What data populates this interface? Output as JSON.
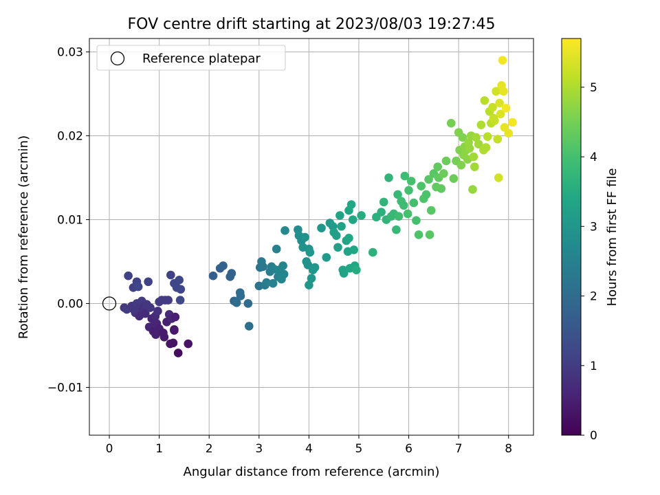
{
  "chart_data": {
    "type": "scatter",
    "title": "FOV centre drift starting at 2023/08/03 19:27:45",
    "xlabel": "Angular distance from reference (arcmin)",
    "ylabel": "Rotation from reference (arcmin)",
    "xlim": [
      -0.4,
      8.5
    ],
    "ylim": [
      -0.0157,
      0.0316
    ],
    "xticks": [
      0,
      1,
      2,
      3,
      4,
      5,
      6,
      7,
      8
    ],
    "xtick_labels": [
      "0",
      "1",
      "2",
      "3",
      "4",
      "5",
      "6",
      "7",
      "8"
    ],
    "yticks": [
      -0.01,
      0.0,
      0.01,
      0.02,
      0.03
    ],
    "ytick_labels": [
      "−0.01",
      "0.00",
      "0.01",
      "0.02",
      "0.03"
    ],
    "grid": true,
    "legend": {
      "position": "top-left",
      "entries": [
        {
          "label": "Reference platepar",
          "marker": "open-circle"
        }
      ]
    },
    "reference_point": {
      "x": 0,
      "y": 0
    },
    "colorbar": {
      "label": "Hours from first FF file",
      "range": [
        0,
        5.7
      ],
      "ticks": [
        0,
        1,
        2,
        3,
        4,
        5
      ],
      "tick_labels": [
        "0",
        "1",
        "2",
        "3",
        "4",
        "5"
      ],
      "colormap": "viridis"
    },
    "points": [
      {
        "x": 0.3,
        "y": -0.0005,
        "t": 0.9
      },
      {
        "x": 0.35,
        "y": -0.0007,
        "t": 1.0
      },
      {
        "x": 0.38,
        "y": 0.0033,
        "t": 1.1
      },
      {
        "x": 0.45,
        "y": -0.0003,
        "t": 0.9
      },
      {
        "x": 0.48,
        "y": 0.0019,
        "t": 1.1
      },
      {
        "x": 0.52,
        "y": -0.0011,
        "t": 0.8
      },
      {
        "x": 0.55,
        "y": 0.0026,
        "t": 1.1
      },
      {
        "x": 0.55,
        "y": 0.0,
        "t": 1.0
      },
      {
        "x": 0.58,
        "y": 0.002,
        "t": 1.2
      },
      {
        "x": 0.6,
        "y": -0.0015,
        "t": 0.7
      },
      {
        "x": 0.62,
        "y": -0.0004,
        "t": 0.9
      },
      {
        "x": 0.65,
        "y": 0.0003,
        "t": 1.0
      },
      {
        "x": 0.68,
        "y": -0.0008,
        "t": 0.8
      },
      {
        "x": 0.7,
        "y": -0.0003,
        "t": 0.8
      },
      {
        "x": 0.72,
        "y": -0.0012,
        "t": 0.7
      },
      {
        "x": 0.75,
        "y": -0.0001,
        "t": 0.9
      },
      {
        "x": 0.78,
        "y": 0.0026,
        "t": 1.1
      },
      {
        "x": 0.8,
        "y": -0.0028,
        "t": 0.6
      },
      {
        "x": 0.82,
        "y": -0.0005,
        "t": 0.9
      },
      {
        "x": 0.85,
        "y": -0.0018,
        "t": 0.6
      },
      {
        "x": 0.88,
        "y": -0.0033,
        "t": 0.5
      },
      {
        "x": 0.9,
        "y": -0.002,
        "t": 0.6
      },
      {
        "x": 0.92,
        "y": -0.0015,
        "t": 0.7
      },
      {
        "x": 0.93,
        "y": -0.0037,
        "t": 0.5
      },
      {
        "x": 0.95,
        "y": -0.0024,
        "t": 0.6
      },
      {
        "x": 0.97,
        "y": -0.0009,
        "t": 0.8
      },
      {
        "x": 1.0,
        "y": 0.0002,
        "t": 1.0
      },
      {
        "x": 1.0,
        "y": -0.003,
        "t": 0.5
      },
      {
        "x": 1.05,
        "y": 0.0004,
        "t": 1.0
      },
      {
        "x": 1.08,
        "y": -0.0035,
        "t": 0.4
      },
      {
        "x": 1.1,
        "y": -0.004,
        "t": 0.4
      },
      {
        "x": 1.12,
        "y": 0.0004,
        "t": 1.0
      },
      {
        "x": 1.15,
        "y": -0.0022,
        "t": 0.5
      },
      {
        "x": 1.18,
        "y": 0.0004,
        "t": 1.0
      },
      {
        "x": 1.2,
        "y": -0.0013,
        "t": 0.7
      },
      {
        "x": 1.22,
        "y": -0.0048,
        "t": 0.3
      },
      {
        "x": 1.23,
        "y": 0.0034,
        "t": 1.1
      },
      {
        "x": 1.25,
        "y": -0.0018,
        "t": 0.6
      },
      {
        "x": 1.28,
        "y": -0.0047,
        "t": 0.3
      },
      {
        "x": 1.3,
        "y": 0.0024,
        "t": 1.2
      },
      {
        "x": 1.3,
        "y": -0.0031,
        "t": 0.4
      },
      {
        "x": 1.32,
        "y": -0.0016,
        "t": 0.5
      },
      {
        "x": 1.35,
        "y": 0.0019,
        "t": 1.2
      },
      {
        "x": 1.38,
        "y": -0.0059,
        "t": 0.2
      },
      {
        "x": 1.4,
        "y": 0.0028,
        "t": 1.2
      },
      {
        "x": 1.42,
        "y": 0.0004,
        "t": 1.2
      },
      {
        "x": 1.43,
        "y": 0.0017,
        "t": 1.2
      },
      {
        "x": 1.58,
        "y": -0.0048,
        "t": 0.3
      },
      {
        "x": 1.3,
        "y": -0.0032,
        "t": 0.4
      },
      {
        "x": 0.5,
        "y": -0.0008,
        "t": 0.9
      },
      {
        "x": 2.08,
        "y": 0.0033,
        "t": 1.7
      },
      {
        "x": 2.22,
        "y": 0.0042,
        "t": 1.7
      },
      {
        "x": 2.28,
        "y": 0.0045,
        "t": 1.8
      },
      {
        "x": 2.42,
        "y": 0.0032,
        "t": 1.8
      },
      {
        "x": 2.45,
        "y": 0.0036,
        "t": 1.8
      },
      {
        "x": 2.5,
        "y": 0.0003,
        "t": 1.9
      },
      {
        "x": 2.55,
        "y": 0.0001,
        "t": 2.0
      },
      {
        "x": 2.62,
        "y": 0.0013,
        "t": 2.0
      },
      {
        "x": 2.63,
        "y": 0.0009,
        "t": 2.0
      },
      {
        "x": 2.78,
        "y": 0.0,
        "t": 2.0
      },
      {
        "x": 2.8,
        "y": -0.0027,
        "t": 2.1
      },
      {
        "x": 3.0,
        "y": 0.0021,
        "t": 2.2
      },
      {
        "x": 3.02,
        "y": 0.0043,
        "t": 2.2
      },
      {
        "x": 3.05,
        "y": 0.005,
        "t": 2.3
      },
      {
        "x": 3.08,
        "y": 0.0044,
        "t": 2.3
      },
      {
        "x": 3.12,
        "y": 0.0022,
        "t": 2.3
      },
      {
        "x": 3.15,
        "y": 0.0025,
        "t": 2.4
      },
      {
        "x": 3.22,
        "y": 0.0038,
        "t": 2.4
      },
      {
        "x": 3.25,
        "y": 0.0044,
        "t": 2.4
      },
      {
        "x": 3.28,
        "y": 0.0024,
        "t": 2.5
      },
      {
        "x": 3.3,
        "y": 0.0041,
        "t": 2.5
      },
      {
        "x": 3.35,
        "y": 0.0065,
        "t": 2.5
      },
      {
        "x": 3.38,
        "y": 0.0032,
        "t": 2.5
      },
      {
        "x": 3.4,
        "y": 0.004,
        "t": 2.6
      },
      {
        "x": 3.45,
        "y": 0.0029,
        "t": 2.6
      },
      {
        "x": 3.48,
        "y": 0.0045,
        "t": 2.6
      },
      {
        "x": 3.5,
        "y": 0.0035,
        "t": 2.6
      },
      {
        "x": 3.52,
        "y": 0.0087,
        "t": 2.7
      },
      {
        "x": 3.78,
        "y": 0.0088,
        "t": 2.8
      },
      {
        "x": 3.8,
        "y": 0.0081,
        "t": 2.8
      },
      {
        "x": 3.85,
        "y": 0.0075,
        "t": 2.8
      },
      {
        "x": 3.88,
        "y": 0.0067,
        "t": 2.9
      },
      {
        "x": 3.92,
        "y": 0.0079,
        "t": 2.9
      },
      {
        "x": 3.95,
        "y": 0.005,
        "t": 2.9
      },
      {
        "x": 3.98,
        "y": 0.0046,
        "t": 2.9
      },
      {
        "x": 4.0,
        "y": 0.0022,
        "t": 3.0
      },
      {
        "x": 4.0,
        "y": 0.0065,
        "t": 2.9
      },
      {
        "x": 4.02,
        "y": 0.0061,
        "t": 3.0
      },
      {
        "x": 4.05,
        "y": 0.003,
        "t": 3.0
      },
      {
        "x": 4.08,
        "y": 0.004,
        "t": 3.0
      },
      {
        "x": 4.12,
        "y": 0.0043,
        "t": 3.0
      },
      {
        "x": 4.25,
        "y": 0.009,
        "t": 3.0
      },
      {
        "x": 4.35,
        "y": 0.0055,
        "t": 3.1
      },
      {
        "x": 4.42,
        "y": 0.0096,
        "t": 3.1
      },
      {
        "x": 4.48,
        "y": 0.0092,
        "t": 3.1
      },
      {
        "x": 4.5,
        "y": 0.0085,
        "t": 3.2
      },
      {
        "x": 4.55,
        "y": 0.0081,
        "t": 3.2
      },
      {
        "x": 4.58,
        "y": 0.0067,
        "t": 3.2
      },
      {
        "x": 4.62,
        "y": 0.0105,
        "t": 3.3
      },
      {
        "x": 4.65,
        "y": 0.0092,
        "t": 3.3
      },
      {
        "x": 4.68,
        "y": 0.004,
        "t": 3.3
      },
      {
        "x": 4.7,
        "y": 0.0036,
        "t": 3.3
      },
      {
        "x": 4.75,
        "y": 0.0075,
        "t": 3.3
      },
      {
        "x": 4.78,
        "y": 0.0062,
        "t": 3.3
      },
      {
        "x": 4.8,
        "y": 0.0111,
        "t": 3.4
      },
      {
        "x": 4.82,
        "y": 0.0042,
        "t": 3.4
      },
      {
        "x": 4.85,
        "y": 0.0118,
        "t": 3.4
      },
      {
        "x": 4.88,
        "y": 0.01,
        "t": 3.4
      },
      {
        "x": 4.9,
        "y": 0.0064,
        "t": 3.4
      },
      {
        "x": 4.92,
        "y": 0.0045,
        "t": 3.4
      },
      {
        "x": 4.95,
        "y": 0.004,
        "t": 3.5
      },
      {
        "x": 5.05,
        "y": 0.0105,
        "t": 3.5
      },
      {
        "x": 4.8,
        "y": 0.0078,
        "t": 3.4
      },
      {
        "x": 5.28,
        "y": 0.0061,
        "t": 3.6
      },
      {
        "x": 5.35,
        "y": 0.0103,
        "t": 3.6
      },
      {
        "x": 5.45,
        "y": 0.0109,
        "t": 3.6
      },
      {
        "x": 5.5,
        "y": 0.0121,
        "t": 3.7
      },
      {
        "x": 5.55,
        "y": 0.01,
        "t": 3.7
      },
      {
        "x": 5.6,
        "y": 0.015,
        "t": 3.7
      },
      {
        "x": 5.65,
        "y": 0.0104,
        "t": 3.8
      },
      {
        "x": 5.7,
        "y": 0.0107,
        "t": 3.8
      },
      {
        "x": 5.75,
        "y": 0.0088,
        "t": 3.8
      },
      {
        "x": 5.78,
        "y": 0.013,
        "t": 3.8
      },
      {
        "x": 5.8,
        "y": 0.0104,
        "t": 3.9
      },
      {
        "x": 5.85,
        "y": 0.0122,
        "t": 3.9
      },
      {
        "x": 5.9,
        "y": 0.0117,
        "t": 3.9
      },
      {
        "x": 5.92,
        "y": 0.0152,
        "t": 3.9
      },
      {
        "x": 5.98,
        "y": 0.0107,
        "t": 4.0
      },
      {
        "x": 6.0,
        "y": 0.0135,
        "t": 4.0
      },
      {
        "x": 6.05,
        "y": 0.0146,
        "t": 4.0
      },
      {
        "x": 6.1,
        "y": 0.012,
        "t": 4.0
      },
      {
        "x": 6.15,
        "y": 0.0099,
        "t": 4.0
      },
      {
        "x": 6.2,
        "y": 0.0082,
        "t": 4.1
      },
      {
        "x": 6.25,
        "y": 0.014,
        "t": 4.1
      },
      {
        "x": 6.3,
        "y": 0.0125,
        "t": 4.1
      },
      {
        "x": 6.35,
        "y": 0.013,
        "t": 4.1
      },
      {
        "x": 6.4,
        "y": 0.0148,
        "t": 4.2
      },
      {
        "x": 6.42,
        "y": 0.0082,
        "t": 4.2
      },
      {
        "x": 6.45,
        "y": 0.0111,
        "t": 4.2
      },
      {
        "x": 6.5,
        "y": 0.0155,
        "t": 4.2
      },
      {
        "x": 6.55,
        "y": 0.0139,
        "t": 4.3
      },
      {
        "x": 6.58,
        "y": 0.0163,
        "t": 4.3
      },
      {
        "x": 6.6,
        "y": 0.015,
        "t": 4.3
      },
      {
        "x": 6.65,
        "y": 0.0137,
        "t": 4.3
      },
      {
        "x": 6.7,
        "y": 0.0155,
        "t": 4.4
      },
      {
        "x": 6.75,
        "y": 0.017,
        "t": 4.4
      },
      {
        "x": 6.85,
        "y": 0.0215,
        "t": 4.5
      },
      {
        "x": 6.9,
        "y": 0.0149,
        "t": 4.4
      },
      {
        "x": 6.95,
        "y": 0.017,
        "t": 4.5
      },
      {
        "x": 7.0,
        "y": 0.0204,
        "t": 4.6
      },
      {
        "x": 7.02,
        "y": 0.0183,
        "t": 4.6
      },
      {
        "x": 7.05,
        "y": 0.0165,
        "t": 4.6
      },
      {
        "x": 7.08,
        "y": 0.0198,
        "t": 4.6
      },
      {
        "x": 7.1,
        "y": 0.0177,
        "t": 4.7
      },
      {
        "x": 7.12,
        "y": 0.0187,
        "t": 4.7
      },
      {
        "x": 7.15,
        "y": 0.0183,
        "t": 4.7
      },
      {
        "x": 7.18,
        "y": 0.0172,
        "t": 4.7
      },
      {
        "x": 7.2,
        "y": 0.0192,
        "t": 4.8
      },
      {
        "x": 7.22,
        "y": 0.0185,
        "t": 4.8
      },
      {
        "x": 7.25,
        "y": 0.02,
        "t": 4.8
      },
      {
        "x": 7.28,
        "y": 0.0136,
        "t": 4.8
      },
      {
        "x": 7.3,
        "y": 0.0175,
        "t": 4.9
      },
      {
        "x": 7.32,
        "y": 0.0163,
        "t": 4.9
      },
      {
        "x": 7.35,
        "y": 0.0198,
        "t": 4.9
      },
      {
        "x": 7.4,
        "y": 0.019,
        "t": 4.9
      },
      {
        "x": 7.45,
        "y": 0.0213,
        "t": 5.0
      },
      {
        "x": 7.5,
        "y": 0.0183,
        "t": 5.0
      },
      {
        "x": 7.52,
        "y": 0.0242,
        "t": 5.1
      },
      {
        "x": 7.55,
        "y": 0.0186,
        "t": 5.0
      },
      {
        "x": 7.58,
        "y": 0.0199,
        "t": 5.1
      },
      {
        "x": 7.62,
        "y": 0.0229,
        "t": 5.1
      },
      {
        "x": 7.65,
        "y": 0.0215,
        "t": 5.1
      },
      {
        "x": 7.68,
        "y": 0.0234,
        "t": 5.2
      },
      {
        "x": 7.7,
        "y": 0.0221,
        "t": 5.2
      },
      {
        "x": 7.75,
        "y": 0.0253,
        "t": 5.3
      },
      {
        "x": 7.78,
        "y": 0.0196,
        "t": 5.2
      },
      {
        "x": 7.8,
        "y": 0.015,
        "t": 5.3
      },
      {
        "x": 7.82,
        "y": 0.0239,
        "t": 5.4
      },
      {
        "x": 7.84,
        "y": 0.0226,
        "t": 5.4
      },
      {
        "x": 7.86,
        "y": 0.026,
        "t": 5.5
      },
      {
        "x": 7.88,
        "y": 0.029,
        "t": 5.6
      },
      {
        "x": 7.9,
        "y": 0.0253,
        "t": 5.5
      },
      {
        "x": 7.92,
        "y": 0.021,
        "t": 5.5
      },
      {
        "x": 7.95,
        "y": 0.0233,
        "t": 5.6
      },
      {
        "x": 8.0,
        "y": 0.0203,
        "t": 5.5
      },
      {
        "x": 8.08,
        "y": 0.0216,
        "t": 5.6
      },
      {
        "x": 7.72,
        "y": 0.0218,
        "t": 5.2
      }
    ]
  }
}
